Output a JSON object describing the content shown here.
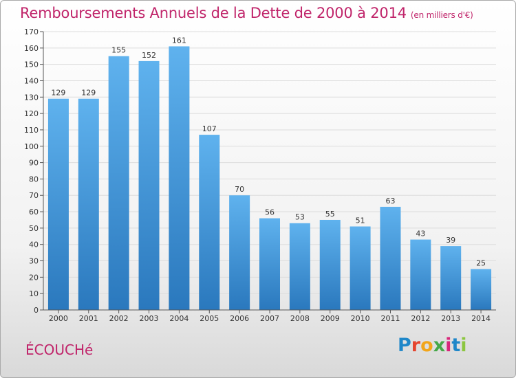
{
  "header": {
    "title": "Remboursements Annuels de la Dette de 2000 à 2014",
    "unit": "(en milliers d'€)"
  },
  "footer": {
    "city": "ÉCOUCHé",
    "logo": {
      "letters": [
        "P",
        "r",
        "o",
        "x",
        "i",
        "t",
        "i"
      ],
      "colors": [
        "#1f87c9",
        "#e5452f",
        "#f2a51a",
        "#45a848",
        "#d8267a",
        "#1f87c9",
        "#8cc63f"
      ]
    }
  },
  "chart_data": {
    "type": "bar",
    "categories": [
      "2000",
      "2001",
      "2002",
      "2003",
      "2004",
      "2005",
      "2006",
      "2007",
      "2008",
      "2009",
      "2010",
      "2011",
      "2012",
      "2013",
      "2014"
    ],
    "values": [
      129,
      129,
      155,
      152,
      161,
      107,
      70,
      56,
      53,
      55,
      51,
      63,
      43,
      39,
      25
    ],
    "ylim": [
      0,
      170
    ],
    "ytick_step": 10,
    "grid": true,
    "bar_color": "#3d96dc"
  }
}
